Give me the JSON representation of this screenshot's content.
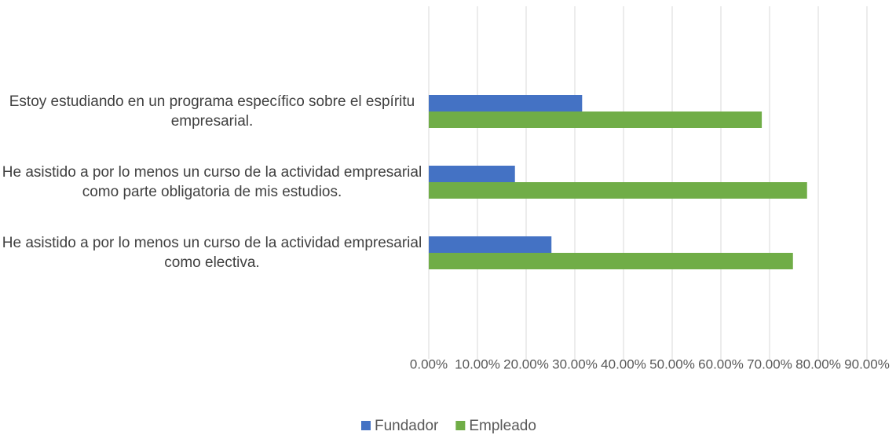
{
  "chart_data": {
    "type": "barh",
    "categories": [
      "Estoy estudiando en un programa específico sobre el espíritu empresarial.",
      "He asistido a por lo menos un curso de la actividad empresarial como parte obligatoria de mis estudios.",
      "He asistido a por lo menos un curso de la actividad empresarial como electiva."
    ],
    "series": [
      {
        "name": "Fundador",
        "color": "#4472c4",
        "values": [
          31.5,
          17.7,
          25.2
        ]
      },
      {
        "name": "Empleado",
        "color": "#70ad47",
        "values": [
          68.4,
          77.7,
          74.8
        ]
      }
    ],
    "xlim": [
      0,
      90
    ],
    "xticks": [
      {
        "value": 0,
        "label": "0.00%"
      },
      {
        "value": 10,
        "label": "10.00%"
      },
      {
        "value": 20,
        "label": "20.00%"
      },
      {
        "value": 30,
        "label": "30.00%"
      },
      {
        "value": 40,
        "label": "40.00%"
      },
      {
        "value": 50,
        "label": "50.00%"
      },
      {
        "value": 60,
        "label": "60.00%"
      },
      {
        "value": 70,
        "label": "70.00%"
      },
      {
        "value": 80,
        "label": "80.00%"
      },
      {
        "value": 90,
        "label": "90.00%"
      }
    ],
    "grid": true,
    "legend": "bottom"
  }
}
